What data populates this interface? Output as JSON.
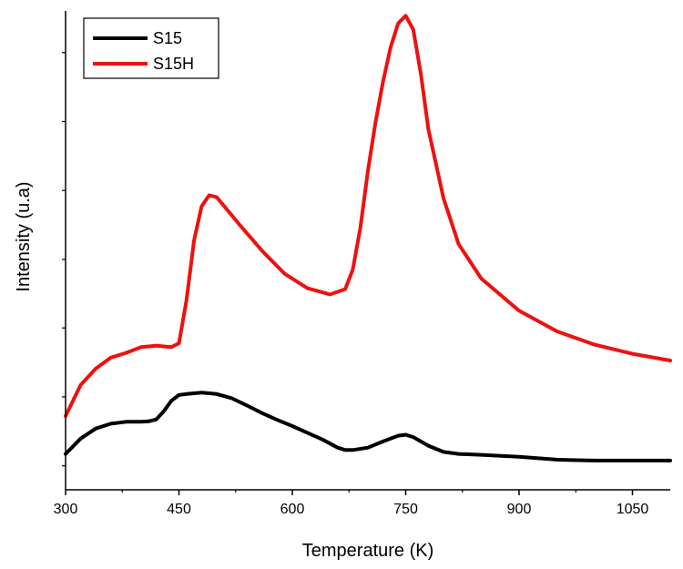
{
  "chart_data": {
    "type": "line",
    "title": "",
    "xlabel": "Temperature (K)",
    "ylabel": "Intensity (u.a)",
    "xlim": [
      300,
      1100
    ],
    "ylim": [
      0,
      100
    ],
    "x_ticks": [
      300,
      450,
      600,
      750,
      900,
      1050
    ],
    "y_minor_ticks": [
      5,
      19.4,
      33.8,
      48.1,
      62.5,
      76.9,
      91.3
    ],
    "grid": false,
    "legend_position": "top-left",
    "series": [
      {
        "name": "S15",
        "color": "#000000",
        "x": [
          300,
          320,
          340,
          360,
          380,
          400,
          410,
          420,
          430,
          440,
          450,
          460,
          480,
          500,
          520,
          540,
          560,
          580,
          600,
          620,
          640,
          660,
          670,
          680,
          700,
          720,
          740,
          750,
          760,
          780,
          800,
          820,
          850,
          900,
          950,
          970,
          1000,
          1050,
          1100
        ],
        "y": [
          7.5,
          10.7,
          12.8,
          13.8,
          14.2,
          14.2,
          14.3,
          14.7,
          16.4,
          18.6,
          19.8,
          20.0,
          20.3,
          20.0,
          19.1,
          17.6,
          16.0,
          14.6,
          13.3,
          11.9,
          10.5,
          8.8,
          8.3,
          8.3,
          8.8,
          10.1,
          11.3,
          11.5,
          11.0,
          9.2,
          7.9,
          7.5,
          7.3,
          6.9,
          6.3,
          6.2,
          6.1,
          6.1,
          6.1
        ]
      },
      {
        "name": "S15H",
        "color": "#ee1111",
        "x": [
          300,
          320,
          340,
          360,
          380,
          400,
          420,
          440,
          450,
          460,
          470,
          480,
          490,
          500,
          510,
          530,
          560,
          590,
          620,
          650,
          670,
          680,
          690,
          700,
          710,
          720,
          730,
          740,
          750,
          760,
          770,
          780,
          800,
          820,
          850,
          900,
          950,
          1000,
          1050,
          1100
        ],
        "y": [
          15.4,
          21.9,
          25.3,
          27.6,
          28.6,
          29.8,
          30.1,
          29.8,
          30.6,
          39.6,
          52.1,
          59.2,
          61.5,
          61.1,
          59.2,
          55.4,
          49.9,
          45.1,
          42.1,
          40.8,
          41.9,
          46.0,
          54.7,
          66.6,
          76.7,
          85.2,
          92.4,
          97.4,
          99.0,
          96.1,
          86.9,
          75.3,
          60.9,
          51.3,
          44.1,
          37.4,
          33.1,
          30.3,
          28.4,
          27.0
        ]
      }
    ]
  }
}
